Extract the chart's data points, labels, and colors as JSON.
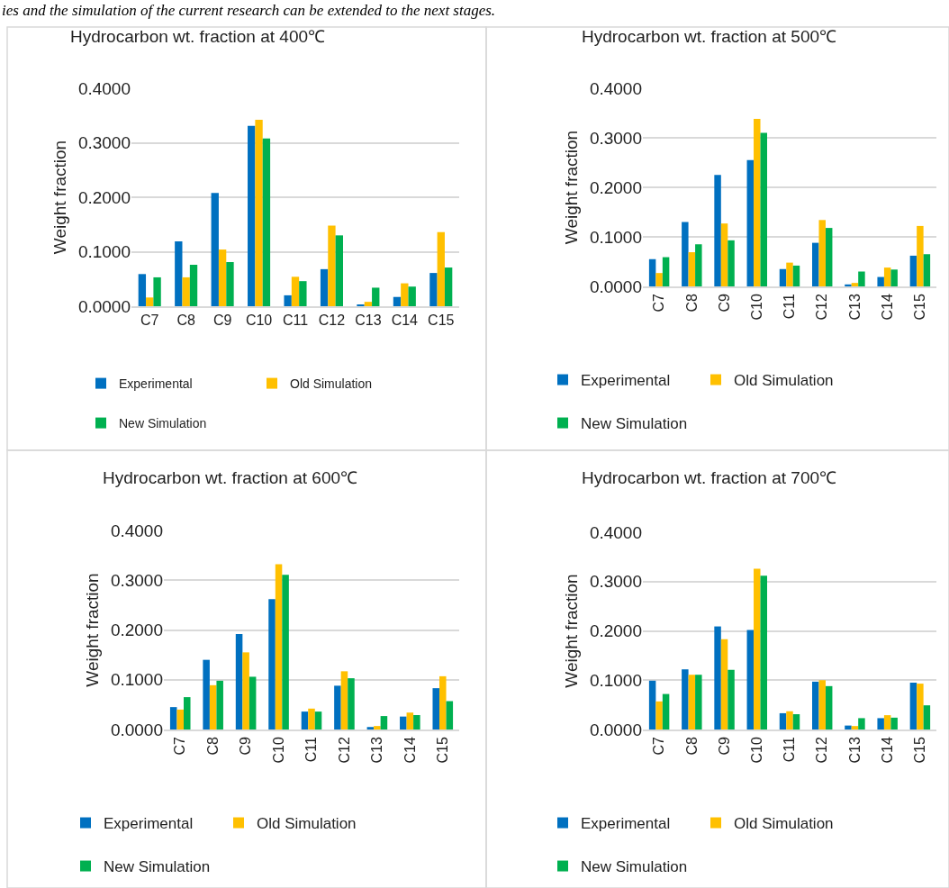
{
  "chart_data": [
    {
      "type": "bar",
      "title": "Hydrocarbon wt. fraction at 400℃",
      "ylabel": "Weight fraction",
      "annotations": [
        "ies and the simulation of the current research can be extended to the next stages."
      ],
      "categories": [
        "C7",
        "C8",
        "C9",
        "C10",
        "C11",
        "C12",
        "C13",
        "C14",
        "C15"
      ],
      "series": [
        {
          "name": "Experimental",
          "color": "#0070c0",
          "values": [
            0.059,
            0.119,
            0.208,
            0.331,
            0.02,
            0.068,
            0.002,
            0.017,
            0.061
          ]
        },
        {
          "name": "Old Simulation",
          "color": "#ffc000",
          "values": [
            0.016,
            0.053,
            0.104,
            0.342,
            0.054,
            0.148,
            0.008,
            0.042,
            0.136
          ]
        },
        {
          "name": "New Simulation",
          "color": "#00b050",
          "values": [
            0.053,
            0.076,
            0.081,
            0.308,
            0.046,
            0.13,
            0.034,
            0.036,
            0.071
          ]
        }
      ],
      "ylim": [
        0,
        0.4
      ],
      "yticks": [
        {
          "value": 0,
          "label": "0.0000"
        },
        {
          "value": 0.1,
          "label": "0.1000"
        },
        {
          "value": 0.2,
          "label": "0.2000"
        },
        {
          "value": 0.3,
          "label": "0.3000"
        },
        {
          "value": 0.4,
          "label": "0.4000"
        }
      ],
      "grid": "y",
      "legend": "bottom"
    },
    {
      "type": "bar",
      "title": "Hydrocarbon wt. fraction at 500℃",
      "ylabel": "Weight fraction",
      "categories": [
        "C7",
        "C8",
        "C9",
        "C10",
        "C11",
        "C12",
        "C13",
        "C14",
        "C15"
      ],
      "series": [
        {
          "name": "Experimental",
          "color": "#0070c0",
          "values": [
            0.055,
            0.13,
            0.225,
            0.255,
            0.035,
            0.088,
            0.004,
            0.019,
            0.062
          ]
        },
        {
          "name": "Old Simulation",
          "color": "#ffc000",
          "values": [
            0.027,
            0.069,
            0.127,
            0.338,
            0.048,
            0.134,
            0.007,
            0.038,
            0.122
          ]
        },
        {
          "name": "New Simulation",
          "color": "#00b050",
          "values": [
            0.059,
            0.085,
            0.093,
            0.31,
            0.042,
            0.118,
            0.03,
            0.034,
            0.065
          ]
        }
      ],
      "ylim": [
        0,
        0.4
      ],
      "yticks": [
        {
          "value": 0,
          "label": "0.0000"
        },
        {
          "value": 0.1,
          "label": "0.1000"
        },
        {
          "value": 0.2,
          "label": "0.2000"
        },
        {
          "value": 0.3,
          "label": "0.3000"
        },
        {
          "value": 0.4,
          "label": "0.4000"
        }
      ],
      "grid": "y",
      "legend": "bottom"
    },
    {
      "type": "bar",
      "title": "Hydrocarbon wt. fraction at 600℃",
      "ylabel": "Weight fraction",
      "categories": [
        "C7",
        "C8",
        "C9",
        "C10",
        "C11",
        "C12",
        "C13",
        "C14",
        "C15"
      ],
      "series": [
        {
          "name": "Experimental",
          "color": "#0070c0",
          "values": [
            0.045,
            0.14,
            0.192,
            0.262,
            0.036,
            0.088,
            0.005,
            0.026,
            0.083
          ]
        },
        {
          "name": "Old Simulation",
          "color": "#ffc000",
          "values": [
            0.04,
            0.089,
            0.155,
            0.332,
            0.042,
            0.117,
            0.007,
            0.034,
            0.107
          ]
        },
        {
          "name": "New Simulation",
          "color": "#00b050",
          "values": [
            0.065,
            0.098,
            0.106,
            0.311,
            0.036,
            0.103,
            0.027,
            0.029,
            0.057
          ]
        }
      ],
      "ylim": [
        0,
        0.4
      ],
      "yticks": [
        {
          "value": 0,
          "label": "0.0000"
        },
        {
          "value": 0.1,
          "label": "0.1000"
        },
        {
          "value": 0.2,
          "label": "0.2000"
        },
        {
          "value": 0.3,
          "label": "0.3000"
        },
        {
          "value": 0.4,
          "label": "0.4000"
        }
      ],
      "grid": "y",
      "legend": "bottom"
    },
    {
      "type": "bar",
      "title": "Hydrocarbon wt. fraction at 700℃",
      "ylabel": "Weight fraction",
      "categories": [
        "C7",
        "C8",
        "C9",
        "C10",
        "C11",
        "C12",
        "C13",
        "C14",
        "C15"
      ],
      "series": [
        {
          "name": "Experimental",
          "color": "#0070c0",
          "values": [
            0.099,
            0.122,
            0.209,
            0.202,
            0.033,
            0.097,
            0.008,
            0.023,
            0.095
          ]
        },
        {
          "name": "Old Simulation",
          "color": "#ffc000",
          "values": [
            0.057,
            0.111,
            0.183,
            0.326,
            0.037,
            0.1,
            0.007,
            0.029,
            0.093
          ]
        },
        {
          "name": "New Simulation",
          "color": "#00b050",
          "values": [
            0.072,
            0.111,
            0.121,
            0.312,
            0.031,
            0.088,
            0.023,
            0.024,
            0.049
          ]
        }
      ],
      "ylim": [
        0,
        0.4
      ],
      "yticks": [
        {
          "value": 0,
          "label": "0.0000"
        },
        {
          "value": 0.1,
          "label": "0.1000"
        },
        {
          "value": 0.2,
          "label": "0.2000"
        },
        {
          "value": 0.3,
          "label": "0.3000"
        },
        {
          "value": 0.4,
          "label": "0.4000"
        }
      ],
      "grid": "y",
      "legend": "bottom"
    }
  ]
}
